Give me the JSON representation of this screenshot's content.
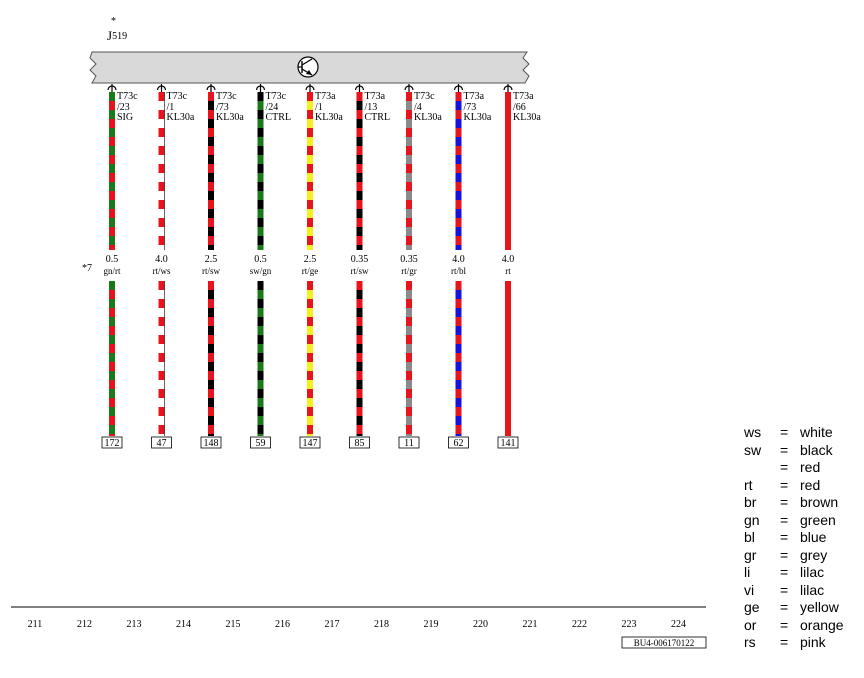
{
  "component": {
    "name_main": "J",
    "name_sub": "519",
    "star": "*"
  },
  "wires": [
    {
      "pin_line1": "T73c",
      "pin_line2": "/23",
      "pin_line3": "SIG",
      "size": "0.5",
      "code": "gn/rt",
      "colors": [
        "#1a7a1a",
        "#e8141c"
      ],
      "ref": "172"
    },
    {
      "pin_line1": "T73c",
      "pin_line2": "/1",
      "pin_line3": "KL30a",
      "size": "4.0",
      "code": "rt/ws",
      "colors": [
        "#e8141c",
        "#ffffff"
      ],
      "ref": "47"
    },
    {
      "pin_line1": "T73c",
      "pin_line2": "/73",
      "pin_line3": "KL30a",
      "size": "2.5",
      "code": "rt/sw",
      "colors": [
        "#e8141c",
        "#000000"
      ],
      "ref": "148"
    },
    {
      "pin_line1": "T73c",
      "pin_line2": "/24",
      "pin_line3": "CTRL",
      "size": "0.5",
      "code": "sw/gn",
      "colors": [
        "#000000",
        "#1a7a1a"
      ],
      "ref": "59"
    },
    {
      "pin_line1": "T73a",
      "pin_line2": "/1",
      "pin_line3": "KL30a",
      "size": "2.5",
      "code": "rt/ge",
      "colors": [
        "#e8141c",
        "#f5f01e"
      ],
      "ref": "147"
    },
    {
      "pin_line1": "T73a",
      "pin_line2": "/13",
      "pin_line3": "CTRL",
      "size": "0.35",
      "code": "rt/sw",
      "colors": [
        "#e8141c",
        "#000000"
      ],
      "ref": "85"
    },
    {
      "pin_line1": "T73c",
      "pin_line2": "/4",
      "pin_line3": "KL30a",
      "size": "0.35",
      "code": "rt/gr",
      "colors": [
        "#e8141c",
        "#8a8a8a"
      ],
      "ref": "11"
    },
    {
      "pin_line1": "T73a",
      "pin_line2": "/73",
      "pin_line3": "KL30a",
      "size": "4.0",
      "code": "rt/bl",
      "colors": [
        "#e8141c",
        "#1414dc"
      ],
      "ref": "62"
    },
    {
      "pin_line1": "T73a",
      "pin_line2": "/66",
      "pin_line3": "KL30a",
      "size": "4.0",
      "code": "rt",
      "colors": [
        "#e8141c"
      ],
      "ref": "141"
    }
  ],
  "note_star7": "*7",
  "grid_numbers": [
    "211",
    "212",
    "213",
    "214",
    "215",
    "216",
    "217",
    "218",
    "219",
    "220",
    "221",
    "222",
    "223",
    "224"
  ],
  "doc_id": "BU4-006170122",
  "legend": [
    {
      "code": "ws",
      "eq": "=",
      "name": "white"
    },
    {
      "code": "sw",
      "eq": "=",
      "name": "black"
    },
    {
      "code": "",
      "eq": "=",
      "name": "red"
    },
    {
      "code": "rt",
      "eq": "=",
      "name": "red"
    },
    {
      "code": "br",
      "eq": "=",
      "name": "brown"
    },
    {
      "code": "gn",
      "eq": "=",
      "name": "green"
    },
    {
      "code": "bl",
      "eq": "=",
      "name": "blue"
    },
    {
      "code": "gr",
      "eq": "=",
      "name": "grey"
    },
    {
      "code": "li",
      "eq": "=",
      "name": "lilac"
    },
    {
      "code": "vi",
      "eq": "=",
      "name": "lilac"
    },
    {
      "code": "ge",
      "eq": "=",
      "name": "yellow"
    },
    {
      "code": "or",
      "eq": "=",
      "name": "orange"
    },
    {
      "code": "rs",
      "eq": "=",
      "name": "pink"
    }
  ]
}
